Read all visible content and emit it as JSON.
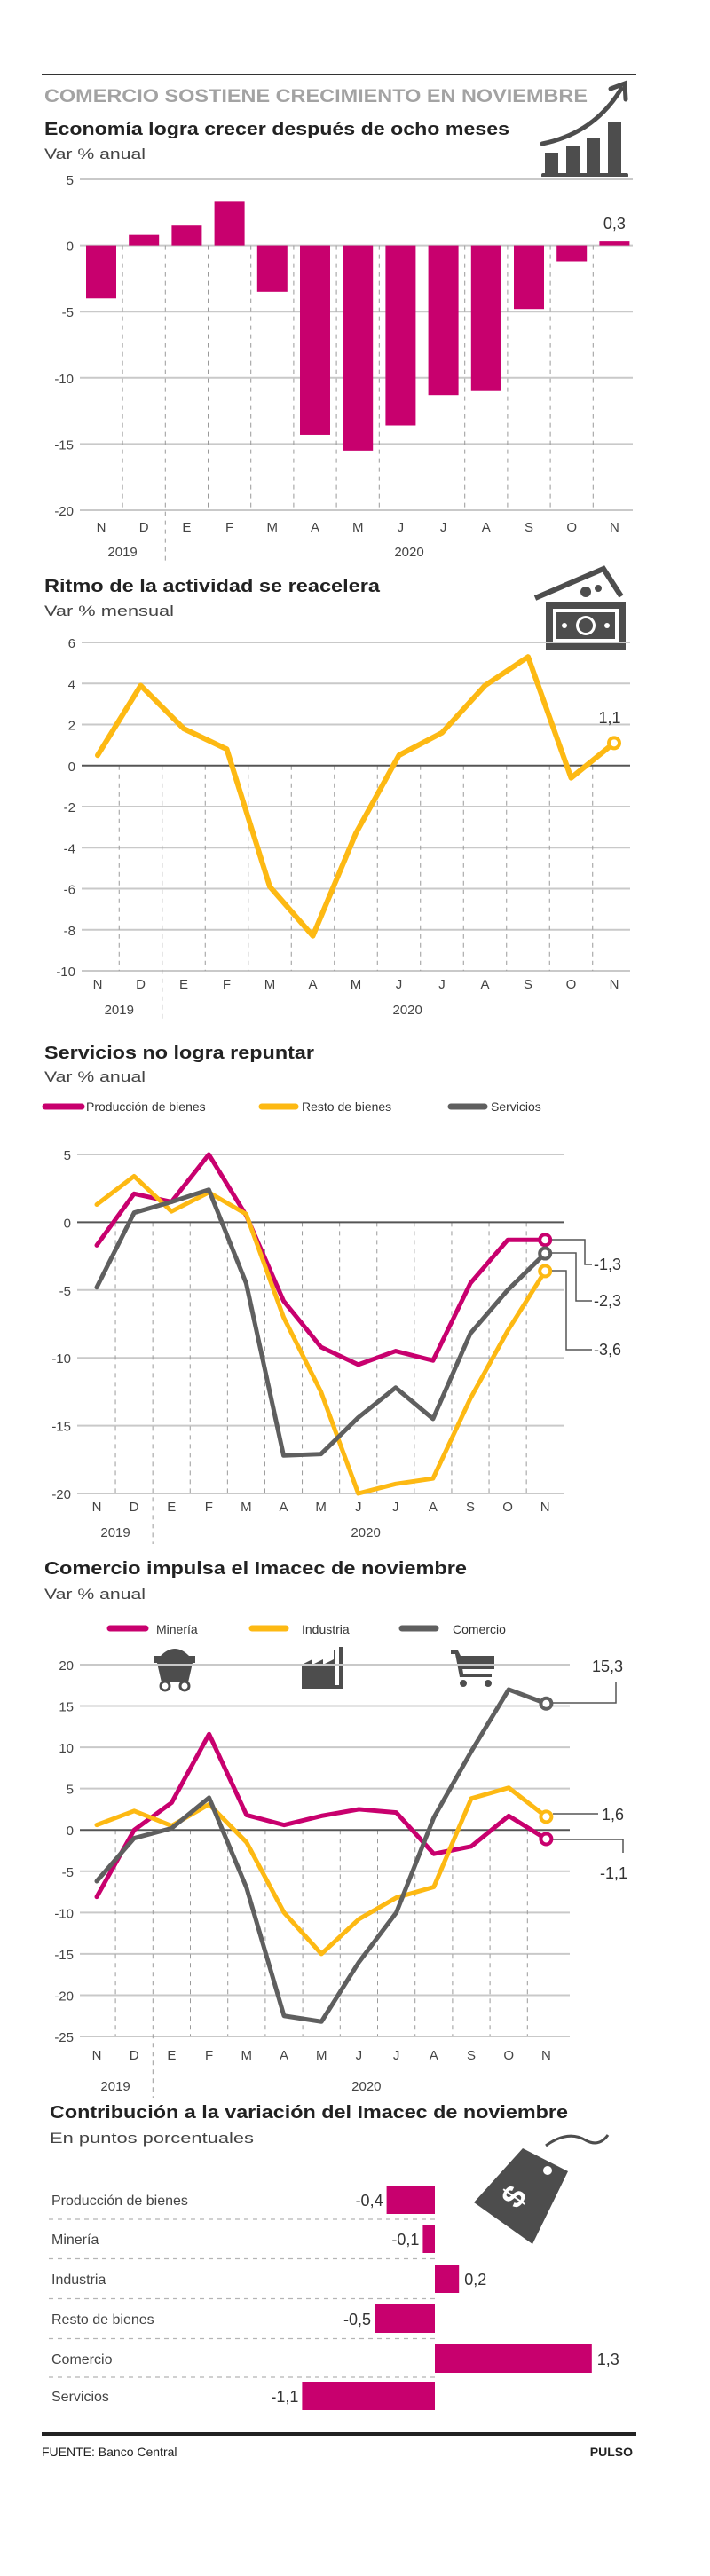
{
  "header": {
    "title": "COMERCIO SOSTIENE CRECIMIENTO EN NOVIEMBRE"
  },
  "footer": {
    "source": "FUENTE: Banco Central",
    "brand": "PULSO"
  },
  "colors": {
    "pink": "#c8006e",
    "yellow": "#fdb913",
    "gray": "#5f5f5f"
  },
  "chart_data": [
    {
      "type": "bar",
      "title": "Economía logra crecer después de ocho meses",
      "subtitle": "Var % anual",
      "icon": "growth-bar-chart-icon",
      "categories": [
        "N",
        "D",
        "E",
        "F",
        "M",
        "A",
        "M",
        "J",
        "J",
        "A",
        "S",
        "O",
        "N"
      ],
      "years": [
        "2019",
        "2020"
      ],
      "values": [
        -4.0,
        0.8,
        1.5,
        3.3,
        -3.5,
        -14.3,
        -15.5,
        -13.6,
        -11.3,
        -11.0,
        -4.8,
        -1.2,
        0.3
      ],
      "ylim": [
        -20,
        5
      ],
      "yticks": [
        5,
        0,
        -5,
        -10,
        -15,
        -20
      ],
      "grid": true,
      "annotation": "0,3",
      "color": "#c8006e"
    },
    {
      "type": "line",
      "title": "Ritmo de la actividad se reacelera",
      "subtitle": "Var % mensual",
      "icon": "money-bills-icon",
      "categories": [
        "N",
        "D",
        "E",
        "F",
        "M",
        "A",
        "M",
        "J",
        "J",
        "A",
        "S",
        "O",
        "N"
      ],
      "years": [
        "2019",
        "2020"
      ],
      "series": [
        {
          "values": [
            0.5,
            3.9,
            1.8,
            0.8,
            -5.9,
            -8.3,
            -3.3,
            0.5,
            1.6,
            3.9,
            5.3,
            -0.6,
            1.1
          ],
          "color": "#fdb913",
          "end_label": "1,1"
        }
      ],
      "ylim": [
        -10,
        6
      ],
      "yticks": [
        6,
        4,
        2,
        0,
        -2,
        -4,
        -6,
        -8,
        -10
      ],
      "grid": true
    },
    {
      "type": "line",
      "title": "Servicios no logra repuntar",
      "subtitle": "Var % anual",
      "legend": "top-left",
      "categories": [
        "N",
        "D",
        "E",
        "F",
        "M",
        "A",
        "M",
        "J",
        "J",
        "A",
        "S",
        "O",
        "N"
      ],
      "years": [
        "2019",
        "2020"
      ],
      "series": [
        {
          "name": "Producción de bienes",
          "values": [
            -1.7,
            2.1,
            1.5,
            5.0,
            0.5,
            -5.8,
            -9.2,
            -10.5,
            -9.5,
            -10.2,
            -4.5,
            -1.3,
            -1.3
          ],
          "color": "#c8006e",
          "end_label": "-1,3"
        },
        {
          "name": "Resto de bienes",
          "values": [
            1.3,
            3.4,
            0.8,
            2.2,
            0.6,
            -7.0,
            -12.5,
            -20.0,
            -19.3,
            -18.9,
            -13.0,
            -8.0,
            -3.6
          ],
          "color": "#fdb913",
          "end_label": "-3,6"
        },
        {
          "name": "Servicios",
          "values": [
            -4.8,
            0.7,
            1.5,
            2.4,
            -4.5,
            -17.2,
            -17.1,
            -14.4,
            -12.2,
            -14.5,
            -8.2,
            -5.0,
            -2.3
          ],
          "color": "#5f5f5f",
          "end_label": "-2,3"
        }
      ],
      "ylim": [
        -20,
        5
      ],
      "yticks": [
        5,
        0,
        -5,
        -10,
        -15,
        -20
      ],
      "grid": true
    },
    {
      "type": "line",
      "title": "Comercio impulsa el Imacec de noviembre",
      "subtitle": "Var % anual",
      "legend": "top",
      "categories": [
        "N",
        "D",
        "E",
        "F",
        "M",
        "A",
        "M",
        "J",
        "J",
        "A",
        "S",
        "O",
        "N"
      ],
      "years": [
        "2019",
        "2020"
      ],
      "series": [
        {
          "name": "Minería",
          "values": [
            -8.1,
            0.0,
            3.3,
            11.6,
            1.8,
            0.6,
            1.7,
            2.5,
            2.1,
            -2.9,
            -2.0,
            1.7,
            -1.1
          ],
          "color": "#c8006e",
          "end_label": "-1,1",
          "icon": "mine-cart-icon"
        },
        {
          "name": "Industria",
          "values": [
            0.6,
            2.3,
            0.5,
            3.1,
            -1.5,
            -10.0,
            -15.0,
            -10.8,
            -8.2,
            -6.9,
            3.8,
            5.1,
            1.6
          ],
          "color": "#fdb913",
          "end_label": "1,6",
          "icon": "factory-icon"
        },
        {
          "name": "Comercio",
          "values": [
            -6.2,
            -1.0,
            0.2,
            3.9,
            -7.0,
            -22.5,
            -23.2,
            -16.0,
            -10.0,
            1.5,
            9.5,
            17.0,
            15.3
          ],
          "color": "#5f5f5f",
          "end_label": "15,3",
          "icon": "shopping-cart-icon"
        }
      ],
      "ylim": [
        -25,
        20
      ],
      "yticks": [
        20,
        15,
        10,
        5,
        0,
        -5,
        -10,
        -15,
        -20,
        -25
      ],
      "grid": true
    },
    {
      "type": "bar",
      "orientation": "horizontal",
      "title": "Contribución a la variación del Imacec de noviembre",
      "subtitle": "En puntos porcentuales",
      "icon": "price-tag-dollar-icon",
      "categories": [
        "Producción de bienes",
        "Minería",
        "Industria",
        "Resto de bienes",
        "Comercio",
        "Servicios"
      ],
      "values": [
        -0.4,
        -0.1,
        0.2,
        -0.5,
        1.3,
        -1.1
      ],
      "labels": [
        "-0,4",
        "-0,1",
        "0,2",
        "-0,5",
        "1,3",
        "-1,1"
      ],
      "color": "#c8006e"
    }
  ]
}
